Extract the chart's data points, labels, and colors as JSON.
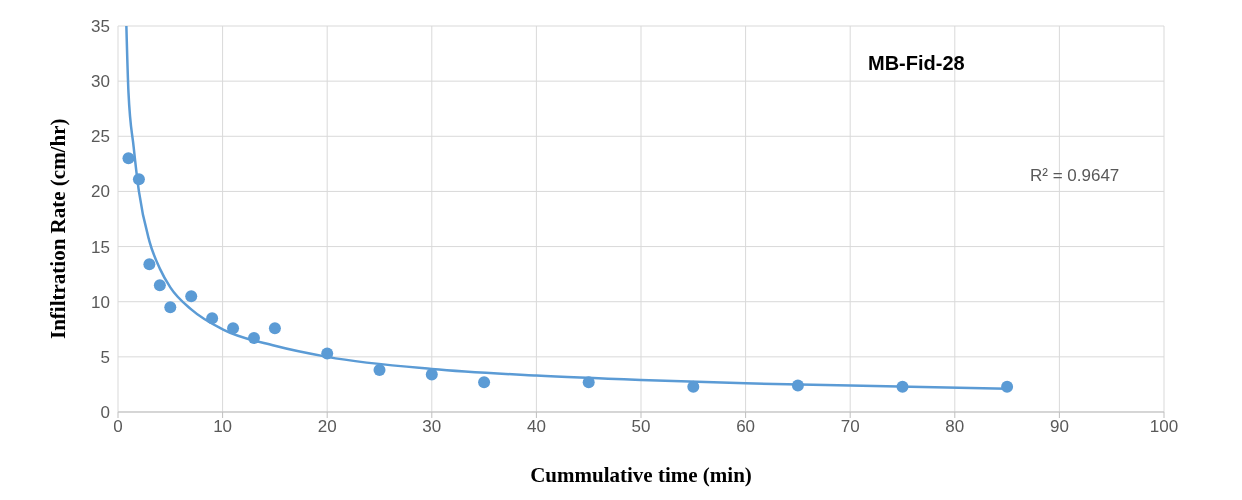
{
  "chart_data": {
    "type": "scatter",
    "title": "MB-Fid-28",
    "xlabel": "Cummulative time (min)",
    "ylabel": "Infiltration Rate (cm/hr)",
    "annotations": [
      "R² = 0.9647"
    ],
    "series": [
      {
        "marker": "circle",
        "color": "#5b9bd5",
        "x": [
          1,
          2,
          3,
          4,
          5,
          7,
          9,
          11,
          13,
          15,
          20,
          25,
          30,
          35,
          45,
          55,
          65,
          75,
          85
        ],
        "values": [
          23,
          21.1,
          13.4,
          11.5,
          9.5,
          10.5,
          8.5,
          7.6,
          6.7,
          7.6,
          5.3,
          3.8,
          3.4,
          2.7,
          2.7,
          2.3,
          2.4,
          2.3,
          2.3
        ]
      },
      {
        "type": "line",
        "marker": "none",
        "color": "#5b9bd5",
        "x": [
          0.8,
          1,
          1.5,
          2,
          3,
          4,
          5,
          7,
          10,
          15,
          20,
          30,
          40,
          50,
          60,
          70,
          85
        ],
        "values": [
          35,
          29,
          24,
          20,
          15.5,
          13,
          11.3,
          9.3,
          7.5,
          6,
          5,
          3.9,
          3.3,
          2.9,
          2.6,
          2.4,
          2.1
        ]
      }
    ],
    "xlim": [
      0,
      100
    ],
    "xticks": [
      0,
      10,
      20,
      30,
      40,
      50,
      60,
      70,
      80,
      90,
      100
    ],
    "ylim": [
      0,
      35
    ],
    "yticks": [
      0,
      5,
      10,
      15,
      20,
      25,
      30,
      35
    ],
    "grid": true,
    "legend": false,
    "line_style": "solid"
  }
}
